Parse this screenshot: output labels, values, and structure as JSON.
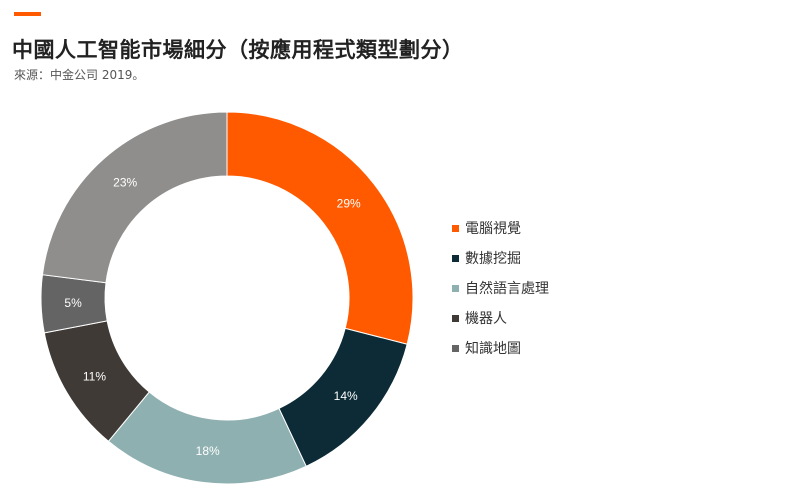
{
  "header": {
    "accent_color": "#ff5a00",
    "title": "中國人工智能市場細分（按應用程式類型劃分）",
    "source": "來源：中金公司 2019。"
  },
  "chart_data": {
    "type": "pie",
    "donut": true,
    "start_angle_deg": 0,
    "direction": "clockwise",
    "legend_position": "right",
    "categories": [
      "電腦視覺",
      "數據挖掘",
      "自然語言處理",
      "機器人",
      "知識地圖"
    ],
    "values": [
      29,
      14,
      18,
      11,
      5
    ],
    "unlabeled_remainder": {
      "value": 23,
      "label": "23%",
      "color": "#8f8e8c"
    },
    "labels": [
      "29%",
      "14%",
      "18%",
      "11%",
      "5%"
    ],
    "colors": [
      "#ff5a00",
      "#0c2b36",
      "#8fb0b0",
      "#3f3a35",
      "#646464"
    ]
  }
}
